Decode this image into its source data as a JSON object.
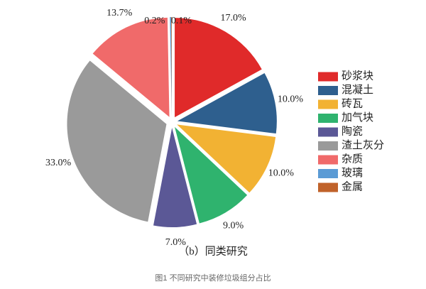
{
  "chart_data": {
    "type": "pie",
    "subtitle": "（b）同类研究",
    "caption": "图1 不同研究中装修垃圾组分占比",
    "categories": [
      "砂浆块",
      "混凝土",
      "砖瓦",
      "加气块",
      "陶瓷",
      "渣土灰分",
      "杂质",
      "玻璃",
      "金属"
    ],
    "values": [
      17.0,
      10.0,
      10.0,
      9.0,
      7.0,
      33.0,
      13.7,
      0.2,
      0.1
    ],
    "value_labels": [
      "17.0%",
      "10.0%",
      "10.0%",
      "9.0%",
      "7.0%",
      "33.0%",
      "13.7%",
      "0.2%",
      "0.1%"
    ],
    "colors": [
      "#e02a2a",
      "#2e5f8e",
      "#f2b233",
      "#2fb36e",
      "#5b5896",
      "#9a9a9a",
      "#f06a6a",
      "#5b9bd5",
      "#c0622a"
    ],
    "legend": "right"
  }
}
